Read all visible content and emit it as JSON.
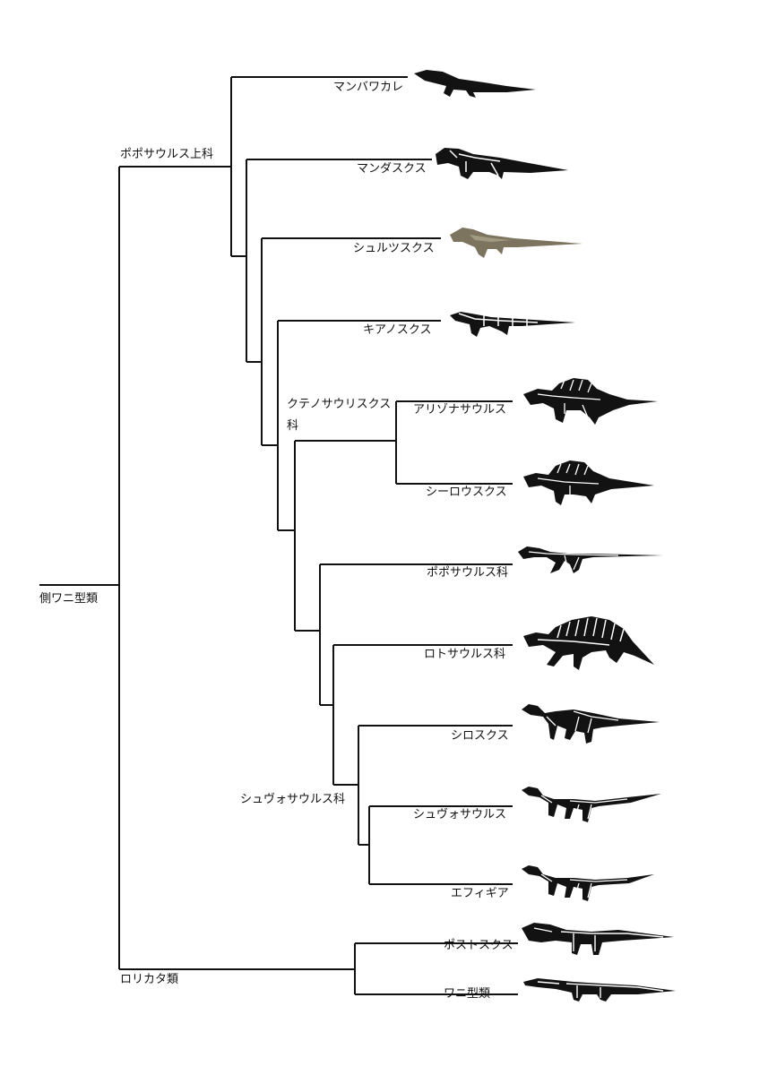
{
  "tree": {
    "root_label": "側ワニ型類",
    "clades": {
      "poposauroidea": "ポポサウルス上科",
      "ctenosauriscidae": "クテノサウリスクス科",
      "shuvosauridae": "シュヴォサウルス科",
      "loricata": "ロリカタ類"
    },
    "taxa": [
      {
        "label": "マンバワカレ",
        "icon": "mambawakale-silhouette-icon"
      },
      {
        "label": "マンダスクス",
        "icon": "mandasuchus-skeletal-icon"
      },
      {
        "label": "シュルツスクス",
        "icon": "schultzsuchus-life-restoration-icon"
      },
      {
        "label": "キアノスクス",
        "icon": "qianosuchus-skeletal-icon"
      },
      {
        "label": "アリゾナサウルス",
        "icon": "arizonasaurus-skeletal-icon"
      },
      {
        "label": "シーロウスクス",
        "icon": "xilousuchus-skeletal-icon"
      },
      {
        "label": "ポポサウルス科",
        "icon": "poposaurus-skeletal-icon"
      },
      {
        "label": "ロトサウルス科",
        "icon": "lotosaurus-skeletal-icon"
      },
      {
        "label": "シロスクス",
        "icon": "sillosuchus-skeletal-icon"
      },
      {
        "label": "シュヴォサウルス",
        "icon": "shuvosaurus-skeletal-icon"
      },
      {
        "label": "エフィギア",
        "icon": "effigia-skeletal-icon"
      },
      {
        "label": "ポストスクス",
        "icon": "postosuchus-skeletal-icon"
      },
      {
        "label": "ワニ型類",
        "icon": "crocodylomorph-skeletal-icon"
      }
    ],
    "colors": {
      "line": "#111111",
      "silhouette": "#121212",
      "bone": "#ffffff",
      "restoration": "#7d7460"
    }
  }
}
